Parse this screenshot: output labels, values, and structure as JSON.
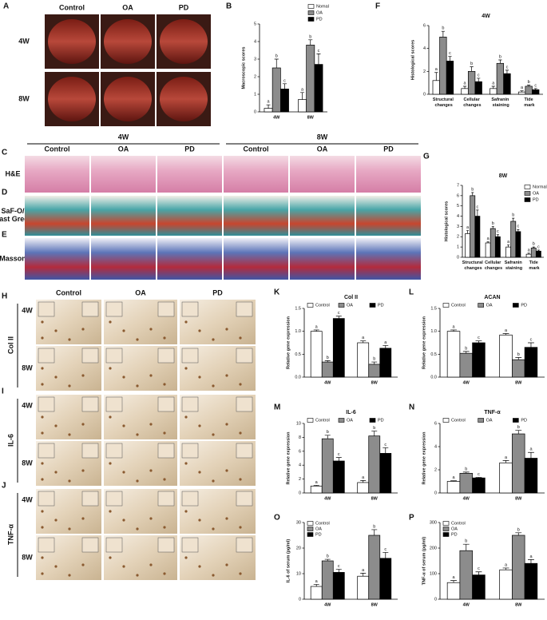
{
  "photos": {
    "A": {
      "letter": "A",
      "columns": [
        "Control",
        "OA",
        "PD"
      ],
      "rows": [
        "4W",
        "8W"
      ]
    },
    "CDE": {
      "groups": [
        "4W",
        "8W"
      ],
      "columns": [
        "Control",
        "OA",
        "PD",
        "Control",
        "OA",
        "PD"
      ],
      "rows": [
        {
          "letter": "C",
          "label": "H&E"
        },
        {
          "letter": "D",
          "label": "SaF-O/ Fast Green"
        },
        {
          "letter": "E",
          "label": "Masson"
        }
      ]
    },
    "HIJ": {
      "columns": [
        "Control",
        "OA",
        "PD"
      ],
      "rows": [
        "4W",
        "8W"
      ],
      "panels": [
        {
          "letter": "H",
          "label": "Col II"
        },
        {
          "letter": "I",
          "label": "IL-6"
        },
        {
          "letter": "J",
          "label": "TNF-α"
        }
      ]
    }
  },
  "chart_data": [
    {
      "type": "bar",
      "panel": "B",
      "ylabel": "Macroscopic scores",
      "categories": [
        "4W",
        "8W"
      ],
      "legend": "top-right",
      "ylim": [
        0,
        5
      ],
      "yticks": [
        0,
        1,
        2,
        3,
        4,
        5
      ],
      "series": [
        {
          "name": "Nomal",
          "color": "#ffffff",
          "values": [
            0.2,
            0.7
          ],
          "errors": [
            0.2,
            0.4
          ],
          "letters": [
            "a",
            "a"
          ]
        },
        {
          "name": "OA",
          "color": "#8c8c8c",
          "values": [
            2.5,
            3.8
          ],
          "errors": [
            0.5,
            0.3
          ],
          "letters": [
            "b",
            "b"
          ]
        },
        {
          "name": "PD",
          "color": "#000000",
          "values": [
            1.3,
            2.7
          ],
          "errors": [
            0.3,
            0.6
          ],
          "letters": [
            "c",
            "c"
          ]
        }
      ]
    },
    {
      "type": "bar",
      "panel": "F",
      "title": "4W",
      "ylabel": "Histological scores",
      "categories": [
        "Structural changes",
        "Cellular changes",
        "Safranin staining",
        "Tide mark"
      ],
      "ylim": [
        0,
        6
      ],
      "yticks": [
        0,
        2,
        4,
        6
      ],
      "series": [
        {
          "color": "#ffffff",
          "values": [
            1.2,
            0.5,
            0.5,
            0.2
          ],
          "errors": [
            0.7,
            0.2,
            0.2,
            0.1
          ],
          "letters": [
            "a",
            "a",
            "a",
            "a"
          ]
        },
        {
          "color": "#8c8c8c",
          "values": [
            5.0,
            2.0,
            2.7,
            0.7
          ],
          "errors": [
            0.5,
            0.4,
            0.3,
            0.1
          ],
          "letters": [
            "b",
            "b",
            "b",
            "b"
          ]
        },
        {
          "color": "#000000",
          "values": [
            2.9,
            1.1,
            1.8,
            0.4
          ],
          "errors": [
            0.4,
            0.3,
            0.3,
            0.1
          ],
          "letters": [
            "c",
            "c",
            "c",
            "c"
          ]
        }
      ]
    },
    {
      "type": "bar",
      "panel": "G",
      "title": "8W",
      "ylabel": "Histological scores",
      "legend": "top-right",
      "categories": [
        "Structural changes",
        "Cellular changes",
        "Safranin staining",
        "Tide mark"
      ],
      "ylim": [
        0,
        7
      ],
      "yticks": [
        0,
        1,
        2,
        3,
        4,
        5,
        6,
        7
      ],
      "series": [
        {
          "name": "Normal",
          "color": "#ffffff",
          "values": [
            2.3,
            1.4,
            1.0,
            0.3
          ],
          "errors": [
            0.3,
            0.1,
            0.2,
            0.1
          ],
          "letters": [
            "a",
            "a",
            "a",
            "a"
          ]
        },
        {
          "name": "OA",
          "color": "#8c8c8c",
          "values": [
            6.0,
            2.8,
            3.5,
            0.9
          ],
          "errors": [
            0.3,
            0.2,
            0.3,
            0.1
          ],
          "letters": [
            "b",
            "b",
            "b",
            "b"
          ]
        },
        {
          "name": "PD",
          "color": "#000000",
          "values": [
            4.0,
            2.0,
            2.5,
            0.6
          ],
          "errors": [
            0.6,
            0.2,
            0.2,
            0.1
          ],
          "letters": [
            "c",
            "c",
            "c",
            "c"
          ]
        }
      ]
    },
    {
      "type": "bar",
      "panel": "K",
      "title": "Col II",
      "ylabel": "Relative gene expression",
      "categories": [
        "4W",
        "8W"
      ],
      "legend": "top",
      "ylim": [
        0,
        1.5
      ],
      "yticks": [
        {
          "value": 0,
          "label": "0.0"
        },
        0.5,
        {
          "value": 1,
          "label": "1.0"
        },
        1.5
      ],
      "series": [
        {
          "name": "Control",
          "color": "#ffffff",
          "values": [
            1.0,
            0.75
          ],
          "errors": [
            0.03,
            0.04
          ],
          "letters": [
            "a",
            "a"
          ]
        },
        {
          "name": "OA",
          "color": "#8c8c8c",
          "values": [
            0.33,
            0.28
          ],
          "errors": [
            0.03,
            0.05
          ],
          "letters": [
            "b",
            "b"
          ]
        },
        {
          "name": "PD",
          "color": "#000000",
          "values": [
            1.28,
            0.63
          ],
          "errors": [
            0.05,
            0.06
          ],
          "letters": [
            "c",
            "a"
          ]
        }
      ]
    },
    {
      "type": "bar",
      "panel": "L",
      "title": "ACAN",
      "ylabel": "Relative gene expression",
      "categories": [
        "4W",
        "8W"
      ],
      "legend": "top",
      "ylim": [
        0,
        1.5
      ],
      "yticks": [
        {
          "value": 0,
          "label": "0.0"
        },
        0.5,
        {
          "value": 1,
          "label": "1.0"
        },
        1.5
      ],
      "series": [
        {
          "name": "Control",
          "color": "#ffffff",
          "values": [
            1.0,
            0.92
          ],
          "errors": [
            0.03,
            0.03
          ],
          "letters": [
            "a",
            "a"
          ]
        },
        {
          "name": "OA",
          "color": "#8c8c8c",
          "values": [
            0.52,
            0.38
          ],
          "errors": [
            0.04,
            0.05
          ],
          "letters": [
            "b",
            "b"
          ]
        },
        {
          "name": "PD",
          "color": "#000000",
          "values": [
            0.75,
            0.65
          ],
          "errors": [
            0.04,
            0.1
          ],
          "letters": [
            "c",
            "c"
          ]
        }
      ]
    },
    {
      "type": "bar",
      "panel": "M",
      "title": "IL-6",
      "ylabel": "Relative gene expression",
      "categories": [
        "4W",
        "8W"
      ],
      "legend": "top",
      "ylim": [
        0,
        10
      ],
      "yticks": [
        0,
        2,
        4,
        6,
        8,
        10
      ],
      "series": [
        {
          "name": "Control",
          "color": "#ffffff",
          "values": [
            1.0,
            1.5
          ],
          "errors": [
            0.1,
            0.3
          ],
          "letters": [
            "a",
            "a"
          ]
        },
        {
          "name": "OA",
          "color": "#8c8c8c",
          "values": [
            7.8,
            8.2
          ],
          "errors": [
            0.5,
            0.7
          ],
          "letters": [
            "b",
            "b"
          ]
        },
        {
          "name": "PD",
          "color": "#000000",
          "values": [
            4.6,
            5.7
          ],
          "errors": [
            0.5,
            0.8
          ],
          "letters": [
            "c",
            "c"
          ]
        }
      ]
    },
    {
      "type": "bar",
      "panel": "N",
      "title": "TNF-α",
      "ylabel": "Relative gene expression",
      "categories": [
        "4W",
        "8W"
      ],
      "legend": "top",
      "ylim": [
        0,
        6
      ],
      "yticks": [
        0,
        2,
        4,
        6
      ],
      "series": [
        {
          "name": "Control",
          "color": "#ffffff",
          "values": [
            1.0,
            2.6
          ],
          "errors": [
            0.05,
            0.2
          ],
          "letters": [
            "a",
            "a"
          ]
        },
        {
          "name": "OA",
          "color": "#8c8c8c",
          "values": [
            1.7,
            5.1
          ],
          "errors": [
            0.1,
            0.3
          ],
          "letters": [
            "b",
            "b"
          ]
        },
        {
          "name": "PD",
          "color": "#000000",
          "values": [
            1.3,
            3.0
          ],
          "errors": [
            0.05,
            0.5
          ],
          "letters": [
            "c",
            "a"
          ]
        }
      ]
    },
    {
      "type": "bar",
      "panel": "O",
      "ylabel": "IL-6 of serum (pg/ml)",
      "categories": [
        "4W",
        "8W"
      ],
      "legend": "top-left",
      "ylim": [
        0,
        30
      ],
      "yticks": [
        0,
        10,
        20,
        30
      ],
      "series": [
        {
          "name": "Control",
          "color": "#ffffff",
          "values": [
            5,
            9
          ],
          "errors": [
            0.8,
            1.2
          ],
          "letters": [
            "a",
            "a"
          ]
        },
        {
          "name": "OA",
          "color": "#8c8c8c",
          "values": [
            15,
            25
          ],
          "errors": [
            0.6,
            2.2
          ],
          "letters": [
            "b",
            "b"
          ]
        },
        {
          "name": "PD",
          "color": "#000000",
          "values": [
            10.5,
            16
          ],
          "errors": [
            1.2,
            2.3
          ],
          "letters": [
            "c",
            "c"
          ]
        }
      ]
    },
    {
      "type": "bar",
      "panel": "P",
      "ylabel": "TNF-α of serum (pg/ml)",
      "categories": [
        "4W",
        "8W"
      ],
      "legend": "top-left",
      "ylim": [
        0,
        300
      ],
      "yticks": [
        0,
        100,
        200,
        300
      ],
      "series": [
        {
          "name": "Control",
          "color": "#ffffff",
          "values": [
            65,
            115
          ],
          "errors": [
            8,
            7
          ],
          "letters": [
            "a",
            "a"
          ]
        },
        {
          "name": "OA",
          "color": "#8c8c8c",
          "values": [
            190,
            250
          ],
          "errors": [
            25,
            10
          ],
          "letters": [
            "b",
            "b"
          ]
        },
        {
          "name": "PD",
          "color": "#000000",
          "values": [
            95,
            140
          ],
          "errors": [
            12,
            15
          ],
          "letters": [
            "c",
            "a"
          ]
        }
      ]
    }
  ]
}
